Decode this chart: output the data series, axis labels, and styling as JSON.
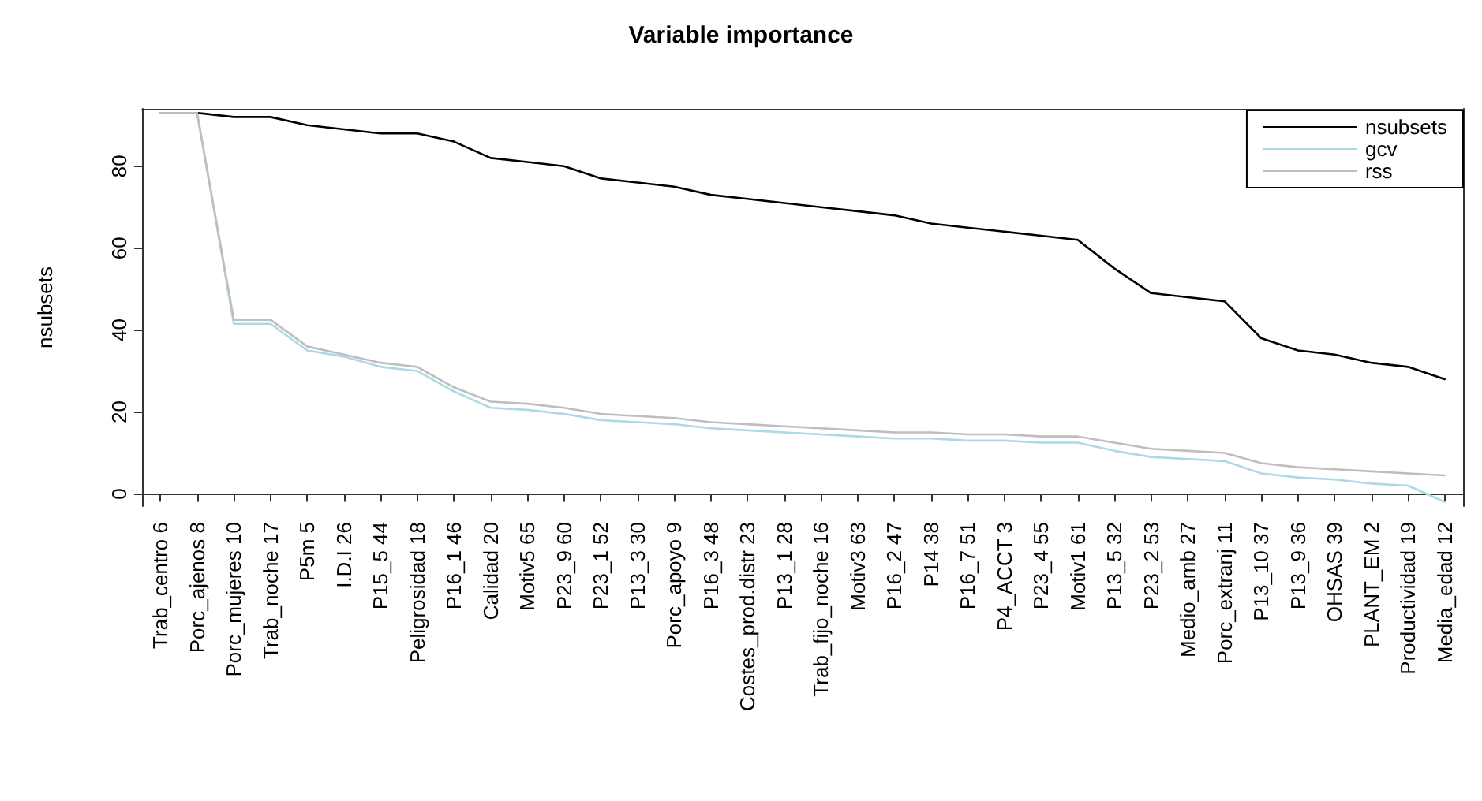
{
  "chart_data": {
    "type": "line",
    "title": "Variable importance",
    "ylabel": "nsubsets",
    "categories": [
      "Trab_centro 6",
      "Porc_ajenos 8",
      "Porc_mujeres 10",
      "Trab_noche 17",
      "P5m 5",
      "I.D.I 26",
      "P15_5 44",
      "Peligrosidad 18",
      "P16_1 46",
      "Calidad 20",
      "Motiv5 65",
      "P23_9 60",
      "P23_1 52",
      "P13_3 30",
      "Porc_apoyo 9",
      "P16_3 48",
      "Costes_prod.distr 23",
      "P13_1 28",
      "Trab_fijo_noche 16",
      "Motiv3 63",
      "P16_2 47",
      "P14 38",
      "P16_7 51",
      "P4_ACCT 3",
      "P23_4 55",
      "Motiv1 61",
      "P13_5 32",
      "P23_2 53",
      "Medio_amb 27",
      "Porc_extranj 11",
      "P13_10 37",
      "P13_9 36",
      "OHSAS 39",
      "PLANT_EM 2",
      "Productividad 19",
      "Media_edad 12"
    ],
    "series": [
      {
        "name": "nsubsets",
        "color": "#000000",
        "values": [
          93,
          93,
          92,
          92,
          90,
          89,
          88,
          88,
          86,
          82,
          81,
          80,
          77,
          76,
          75,
          73,
          72,
          71,
          70,
          69,
          68,
          66,
          65,
          64,
          63,
          62,
          55,
          49,
          48,
          47,
          38,
          35,
          34,
          32,
          31,
          28
        ]
      },
      {
        "name": "gcv",
        "color": "#add8e6",
        "values": [
          93,
          93,
          41.5,
          41.5,
          35,
          33.5,
          31,
          30,
          25,
          21,
          20.5,
          19.5,
          18,
          17.5,
          17,
          16,
          15.5,
          15,
          14.5,
          14,
          13.5,
          13.5,
          13,
          13,
          12.5,
          12.5,
          10.5,
          9,
          8.5,
          8,
          5,
          4,
          3.5,
          2.5,
          2,
          -2
        ]
      },
      {
        "name": "rss",
        "color": "#bebebe",
        "values": [
          93,
          93,
          42.5,
          42.5,
          36,
          34,
          32,
          31,
          26,
          22.5,
          22,
          21,
          19.5,
          19,
          18.5,
          17.5,
          17,
          16.5,
          16,
          15.5,
          15,
          15,
          14.5,
          14.5,
          14,
          14,
          12.5,
          11,
          10.5,
          10,
          7.5,
          6.5,
          6,
          5.5,
          5,
          4.5
        ]
      }
    ],
    "ylim": [
      -3,
      94
    ],
    "yticks": [
      0,
      20,
      40,
      60,
      80
    ],
    "grid": false,
    "legend": "top right",
    "marker": "none",
    "line_style": "solid"
  }
}
